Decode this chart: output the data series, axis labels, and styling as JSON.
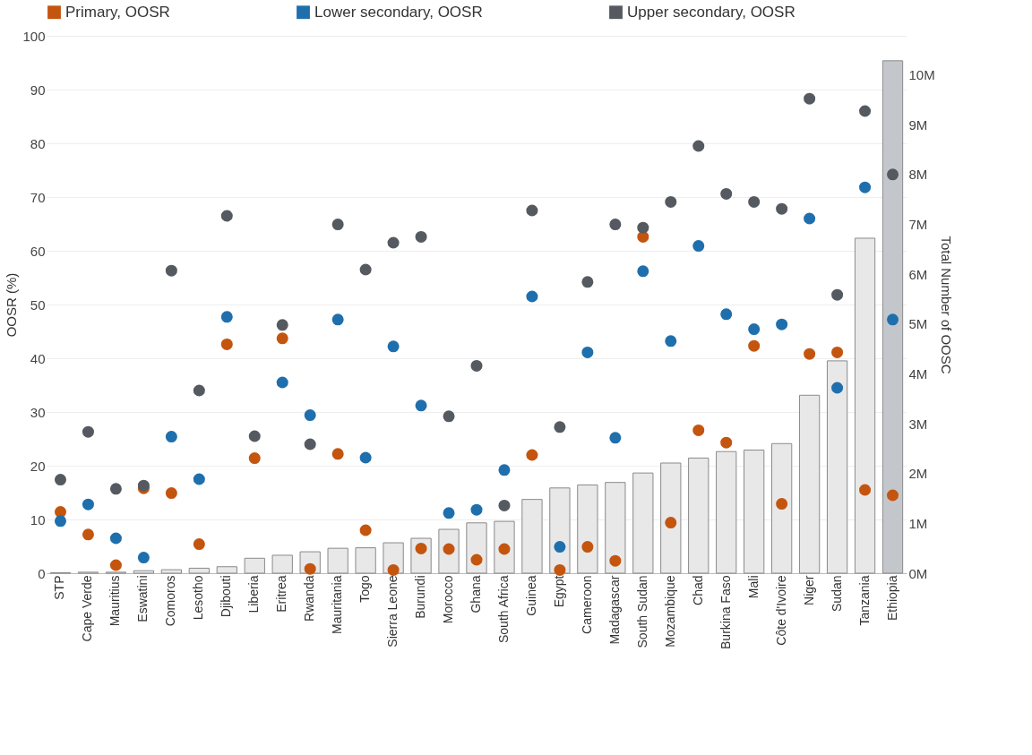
{
  "chart_data": {
    "type": "scatter",
    "ylabel": "OOSR (%)",
    "y2label": "Total Number of OOSC",
    "categories": [
      "STP",
      "Cape Verde",
      "Mauritius",
      "Eswatini",
      "Comoros",
      "Lesotho",
      "Djibouti",
      "Liberia",
      "Eritrea",
      "Rwanda",
      "Mauritania",
      "Togo",
      "Sierra Leone",
      "Burundi",
      "Morocco",
      "Ghana",
      "South Africa",
      "Guinea",
      "Egypt",
      "Cameroon",
      "Madagascar",
      "South Sudan",
      "Mozambique",
      "Chad",
      "Burkina Faso",
      "Mali",
      "Côte d'Ivoire",
      "Niger",
      "Sudan",
      "Tanzania",
      "Ethiopia"
    ],
    "ylim": [
      0,
      100
    ],
    "yticks": [
      0,
      10,
      20,
      30,
      40,
      50,
      60,
      70,
      80,
      90,
      100
    ],
    "y2lim": [
      0,
      10.78
    ],
    "y2ticks": [
      {
        "value": 0,
        "label": "0M"
      },
      {
        "value": 1,
        "label": "1M"
      },
      {
        "value": 2,
        "label": "2M"
      },
      {
        "value": 3,
        "label": "3M"
      },
      {
        "value": 4,
        "label": "4M"
      },
      {
        "value": 5,
        "label": "5M"
      },
      {
        "value": 6,
        "label": "6M"
      },
      {
        "value": 7,
        "label": "7M"
      },
      {
        "value": 8,
        "label": "8M"
      },
      {
        "value": 9,
        "label": "9M"
      },
      {
        "value": 10,
        "label": "10M"
      }
    ],
    "grid": "y",
    "legend": "top",
    "marker": "circle",
    "series": [
      {
        "type": "bar",
        "axis": "y2",
        "colors": [
          "#e8e8e8",
          "#e8e8e8",
          "#e8e8e8",
          "#e8e8e8",
          "#e8e8e8",
          "#e8e8e8",
          "#e8e8e8",
          "#e8e8e8",
          "#e8e8e8",
          "#e8e8e8",
          "#e8e8e8",
          "#e8e8e8",
          "#e8e8e8",
          "#e8e8e8",
          "#e8e8e8",
          "#e8e8e8",
          "#e8e8e8",
          "#e8e8e8",
          "#e8e8e8",
          "#e8e8e8",
          "#e8e8e8",
          "#e8e8e8",
          "#e8e8e8",
          "#e8e8e8",
          "#e8e8e8",
          "#e8e8e8",
          "#e8e8e8",
          "#e8e8e8",
          "#e8e8e8",
          "#e8e8e8",
          "#c3c7cb"
        ],
        "values": [
          0.01,
          0.02,
          0.02,
          0.05,
          0.07,
          0.1,
          0.13,
          0.3,
          0.36,
          0.43,
          0.5,
          0.51,
          0.61,
          0.7,
          0.88,
          1.01,
          1.04,
          1.48,
          1.71,
          1.77,
          1.82,
          2.01,
          2.21,
          2.31,
          2.44,
          2.47,
          2.6,
          3.57,
          4.26,
          6.72,
          10.28
        ]
      },
      {
        "name": "Primary, OOSR",
        "color": "#c4550f",
        "values": [
          11.4,
          7.2,
          1.5,
          15.8,
          14.9,
          5.4,
          42.6,
          21.4,
          43.7,
          0.8,
          22.2,
          8,
          0.6,
          4.6,
          4.5,
          2.5,
          4.5,
          22,
          0.6,
          4.9,
          2.3,
          62.6,
          9.4,
          26.6,
          24.3,
          42.3,
          12.9,
          40.8,
          41.1,
          15.5,
          14.5
        ]
      },
      {
        "name": "Lower secondary, OOSR",
        "color": "#1f6fad",
        "values": [
          9.7,
          12.8,
          6.5,
          2.9,
          25.4,
          17.5,
          47.7,
          null,
          35.5,
          29.4,
          47.2,
          21.5,
          42.2,
          31.2,
          11.2,
          11.8,
          19.2,
          51.5,
          4.9,
          41.1,
          25.2,
          56.2,
          43.2,
          60.9,
          48.2,
          45.4,
          46.3,
          66,
          34.5,
          71.8,
          47.2
        ]
      },
      {
        "name": "Upper secondary, OOSR",
        "color": "#555a60",
        "values": [
          17.4,
          26.3,
          15.7,
          16.3,
          56.3,
          34,
          66.5,
          25.5,
          46.2,
          24,
          64.9,
          56.5,
          61.5,
          62.6,
          29.2,
          38.6,
          12.6,
          67.5,
          27.2,
          54.2,
          64.9,
          64.3,
          69.1,
          79.5,
          70.6,
          69.1,
          67.8,
          88.3,
          51.8,
          86,
          74.2
        ]
      }
    ]
  }
}
